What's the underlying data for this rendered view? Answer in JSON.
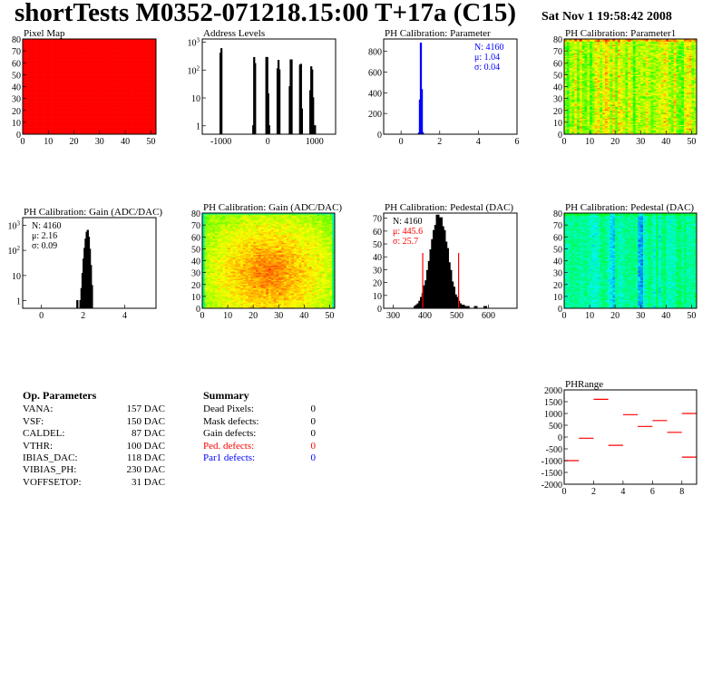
{
  "header": {
    "title": "shortTests M0352-071218.15:00 T+17a (C15)",
    "date": "Sat Nov  1 19:58:42 2008"
  },
  "op_parameters": {
    "title": "Op. Parameters",
    "rows": [
      {
        "name": "VANA:",
        "value": "157 DAC"
      },
      {
        "name": "VSF:",
        "value": "150 DAC"
      },
      {
        "name": "CALDEL:",
        "value": "87 DAC"
      },
      {
        "name": "VTHR:",
        "value": "100 DAC"
      },
      {
        "name": "IBIAS_DAC:",
        "value": "118 DAC"
      },
      {
        "name": "VIBIAS_PH:",
        "value": "230 DAC"
      },
      {
        "name": "VOFFSETOP:",
        "value": "31 DAC"
      }
    ]
  },
  "summary": {
    "title": "Summary",
    "rows": [
      {
        "name": "Dead Pixels:",
        "value": "0",
        "color": "#000000"
      },
      {
        "name": "Mask defects:",
        "value": "0",
        "color": "#000000"
      },
      {
        "name": "Gain defects:",
        "value": "0",
        "color": "#000000"
      },
      {
        "name": "Ped. defects:",
        "value": "0",
        "color": "#ff0000"
      },
      {
        "name": "Par1 defects:",
        "value": "0",
        "color": "#0000ff"
      }
    ]
  },
  "chart_data": [
    {
      "type": "heatmap",
      "title": "Pixel Map",
      "xlim": [
        0,
        52
      ],
      "ylim": [
        0,
        80
      ],
      "xticks": [
        0,
        10,
        20,
        30,
        40,
        50
      ],
      "yticks": [
        0,
        10,
        20,
        30,
        40,
        50,
        60,
        70,
        80
      ],
      "zlim": [
        0,
        10
      ],
      "zticks": [
        0,
        1,
        2,
        3,
        4,
        5,
        6,
        7,
        8,
        9,
        10
      ],
      "value_all": 10
    },
    {
      "type": "bar",
      "title": "Address Levels",
      "ylog": true,
      "xlim": [
        -1400,
        1450
      ],
      "ylim": [
        0.5,
        1300
      ],
      "xticks": [
        -1000,
        0,
        1000
      ],
      "yticks": [
        1,
        10,
        100,
        1000
      ],
      "bin_width": 20,
      "bins": [
        [
          -1010,
          400
        ],
        [
          -990,
          580
        ],
        [
          -310,
          1
        ],
        [
          -290,
          280
        ],
        [
          -270,
          170
        ],
        [
          -30,
          280
        ],
        [
          -10,
          280
        ],
        [
          10,
          14
        ],
        [
          30,
          1
        ],
        [
          210,
          110
        ],
        [
          230,
          220
        ],
        [
          250,
          100
        ],
        [
          470,
          25
        ],
        [
          490,
          230
        ],
        [
          510,
          230
        ],
        [
          690,
          150
        ],
        [
          710,
          160
        ],
        [
          730,
          4
        ],
        [
          910,
          18
        ],
        [
          930,
          130
        ],
        [
          950,
          100
        ],
        [
          970,
          10
        ],
        [
          1010,
          1
        ]
      ]
    },
    {
      "type": "bar",
      "title": "PH Calibration: Parameter",
      "color": "#0000ff",
      "xlim": [
        -0.9,
        6
      ],
      "ylim": [
        0,
        920
      ],
      "xticks": [
        0,
        2,
        4,
        6
      ],
      "yticks": [
        0,
        200,
        400,
        600,
        800
      ],
      "bin_width": 0.05,
      "bins": [
        [
          0.925,
          10
        ],
        [
          0.975,
          330
        ],
        [
          1.025,
          880
        ],
        [
          1.075,
          430
        ],
        [
          1.125,
          15
        ]
      ],
      "stats": {
        "n": "N: 4160",
        "mean": "μ: 1.04",
        "sigma": "σ: 0.04",
        "color": "#0000ff"
      }
    },
    {
      "type": "heatmap",
      "title": "PH Calibration: Parameter1",
      "xlim": [
        0,
        52
      ],
      "ylim": [
        0,
        80
      ],
      "xticks": [
        0,
        10,
        20,
        30,
        40,
        50
      ],
      "yticks": [
        0,
        10,
        20,
        30,
        40,
        50,
        60,
        70,
        80
      ],
      "zlim": [
        0.88,
        1.12
      ],
      "zticks": [
        0.9,
        0.95,
        1,
        1.05,
        1.1
      ],
      "mean": 1.05,
      "spread": 0.03
    },
    {
      "type": "bar",
      "title": "PH Calibration: Gain (ADC/DAC)",
      "ylog": true,
      "xlim": [
        -0.9,
        5.5
      ],
      "ylim": [
        0.5,
        2000
      ],
      "xticks": [
        0,
        2,
        4
      ],
      "yticks": [
        1,
        10,
        100,
        1000
      ],
      "bin_width": 0.05,
      "bins": [
        [
          1.725,
          1
        ],
        [
          1.875,
          1
        ],
        [
          1.925,
          3
        ],
        [
          1.975,
          12
        ],
        [
          2.025,
          45
        ],
        [
          2.075,
          120
        ],
        [
          2.125,
          280
        ],
        [
          2.175,
          520
        ],
        [
          2.225,
          620
        ],
        [
          2.275,
          330
        ],
        [
          2.325,
          110
        ],
        [
          2.375,
          25
        ],
        [
          2.425,
          4
        ]
      ],
      "filled_bins": [
        [
          1.725,
          1
        ]
      ],
      "stats": {
        "n": "N: 4160",
        "mean": "μ: 2.16",
        "sigma": "σ: 0.09",
        "color": "#000000"
      }
    },
    {
      "type": "heatmap",
      "title": "PH Calibration: Gain (ADC/DAC)",
      "xlim": [
        0,
        52
      ],
      "ylim": [
        0,
        80
      ],
      "xticks": [
        0,
        10,
        20,
        30,
        40,
        50
      ],
      "yticks": [
        0,
        10,
        20,
        30,
        40,
        50,
        60,
        70,
        80
      ],
      "zlim": [
        1.58,
        2.37
      ],
      "zticks": [
        1.6,
        1.7,
        1.8,
        1.9,
        2,
        2.1,
        2.2,
        2.3
      ],
      "mean": 2.2,
      "spread": 0.07
    },
    {
      "type": "bar",
      "title": "PH Calibration: Pedestal (DAC)",
      "xlim": [
        270,
        690
      ],
      "ylim": [
        0,
        74
      ],
      "xticks": [
        300,
        400,
        500,
        600
      ],
      "yticks": [
        0,
        10,
        20,
        30,
        40,
        50,
        60,
        70
      ],
      "bin_width": 5,
      "bins": [
        [
          370,
          1
        ],
        [
          375,
          2
        ],
        [
          380,
          3
        ],
        [
          385,
          5
        ],
        [
          390,
          8
        ],
        [
          395,
          11
        ],
        [
          400,
          17
        ],
        [
          405,
          21
        ],
        [
          410,
          29
        ],
        [
          415,
          36
        ],
        [
          420,
          45
        ],
        [
          425,
          53
        ],
        [
          430,
          60
        ],
        [
          435,
          64
        ],
        [
          440,
          72
        ],
        [
          445,
          68
        ],
        [
          450,
          70
        ],
        [
          455,
          63
        ],
        [
          460,
          60
        ],
        [
          465,
          51
        ],
        [
          470,
          46
        ],
        [
          475,
          35
        ],
        [
          480,
          29
        ],
        [
          485,
          20
        ],
        [
          490,
          16
        ],
        [
          495,
          10
        ],
        [
          500,
          8
        ],
        [
          505,
          5
        ],
        [
          510,
          3
        ],
        [
          515,
          2
        ],
        [
          520,
          2
        ],
        [
          525,
          1
        ],
        [
          535,
          1
        ],
        [
          560,
          1
        ],
        [
          590,
          1
        ]
      ],
      "cut_lines": [
        393,
        506
      ],
      "cut_height": 43,
      "stats": {
        "n": "N: 4160",
        "mean": "μ: 445.6",
        "sigma": "σ: 25.7",
        "color": "#ff0000"
      }
    },
    {
      "type": "heatmap",
      "title": "PH Calibration: Pedestal (DAC)",
      "xlim": [
        0,
        52
      ],
      "ylim": [
        0,
        80
      ],
      "xticks": [
        0,
        10,
        20,
        30,
        40,
        50
      ],
      "yticks": [
        0,
        10,
        20,
        30,
        40,
        50,
        60,
        70,
        80
      ],
      "zlim": [
        370,
        595
      ],
      "zticks": [
        380,
        400,
        420,
        440,
        460,
        480,
        500,
        520,
        540,
        560,
        580
      ],
      "mean": 465,
      "spread": 18,
      "low_columns": [
        18,
        19,
        29,
        30
      ]
    },
    {
      "type": "line",
      "title": "PHRange",
      "xlim": [
        0,
        9
      ],
      "ylim": [
        -2000,
        2000
      ],
      "xticks": [
        0,
        2,
        4,
        6,
        8
      ],
      "yticks": [
        -2000,
        -1500,
        -1000,
        -500,
        0,
        500,
        1000,
        1500,
        2000
      ],
      "zlim": [
        0,
        1
      ],
      "zticks": [
        0,
        0.1,
        0.2,
        0.3,
        0.4,
        0.5,
        0.6,
        0.7,
        0.8,
        0.9,
        1
      ],
      "color": "#ff0000",
      "segments": [
        [
          0,
          -1000
        ],
        [
          1,
          -50
        ],
        [
          2,
          1600
        ],
        [
          3,
          -350
        ],
        [
          4,
          950
        ],
        [
          5,
          450
        ],
        [
          6,
          700
        ],
        [
          7,
          200
        ],
        [
          8,
          1000
        ],
        [
          8,
          -850
        ]
      ]
    }
  ]
}
